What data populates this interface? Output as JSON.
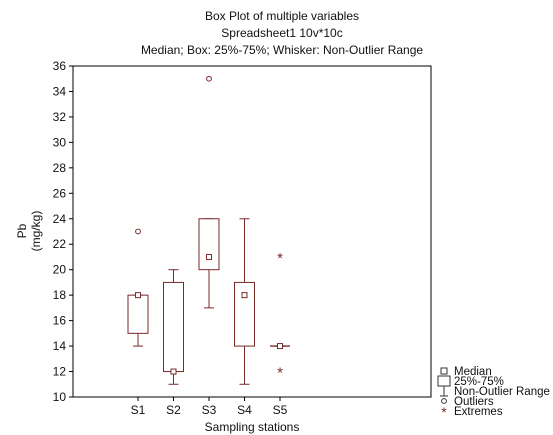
{
  "chart_data": {
    "type": "box",
    "title": "Box Plot of multiple variables",
    "subtitle": "Spreadsheet1 10v*10c",
    "subtitle2": "Median; Box: 25%-75%; Whisker: Non-Outlier Range",
    "xlabel": "Sampling stations",
    "ylabel": "Pb",
    "ylabel_unit": "(mg/kg)",
    "ylim": [
      10,
      36
    ],
    "yticks": [
      10,
      12,
      14,
      16,
      18,
      20,
      22,
      24,
      26,
      28,
      30,
      32,
      34,
      36
    ],
    "categories": [
      "S1",
      "S2",
      "S3",
      "S4",
      "S5"
    ],
    "boxes": [
      {
        "label": "S1",
        "whisker_low": 14,
        "q1": 15,
        "median": 18,
        "q3": 18,
        "whisker_high": 18,
        "outliers": [
          23
        ],
        "extremes": []
      },
      {
        "label": "S2",
        "whisker_low": 11,
        "q1": 12,
        "median": 12,
        "q3": 19,
        "whisker_high": 20,
        "outliers": [],
        "extremes": []
      },
      {
        "label": "S3",
        "whisker_low": 17,
        "q1": 20,
        "median": 21,
        "q3": 24,
        "whisker_high": 24,
        "outliers": [
          35
        ],
        "extremes": []
      },
      {
        "label": "S4",
        "whisker_low": 11,
        "q1": 14,
        "median": 18,
        "q3": 19,
        "whisker_high": 24,
        "outliers": [],
        "extremes": []
      },
      {
        "label": "S5",
        "whisker_low": 14,
        "q1": 14,
        "median": 14,
        "q3": 14,
        "whisker_high": 14,
        "outliers": [],
        "extremes": [
          21,
          12
        ]
      }
    ],
    "legend": {
      "position": "bottom-right",
      "items": [
        {
          "symbol": "median",
          "label": "Median"
        },
        {
          "symbol": "box",
          "label": "25%-75%"
        },
        {
          "symbol": "whisker",
          "label": "Non-Outlier Range"
        },
        {
          "symbol": "outlier",
          "label": "Outliers"
        },
        {
          "symbol": "extreme",
          "label": "Extremes"
        }
      ]
    },
    "grid": false,
    "colors": {
      "mark": "#7b2828",
      "axis": "#000000"
    }
  }
}
